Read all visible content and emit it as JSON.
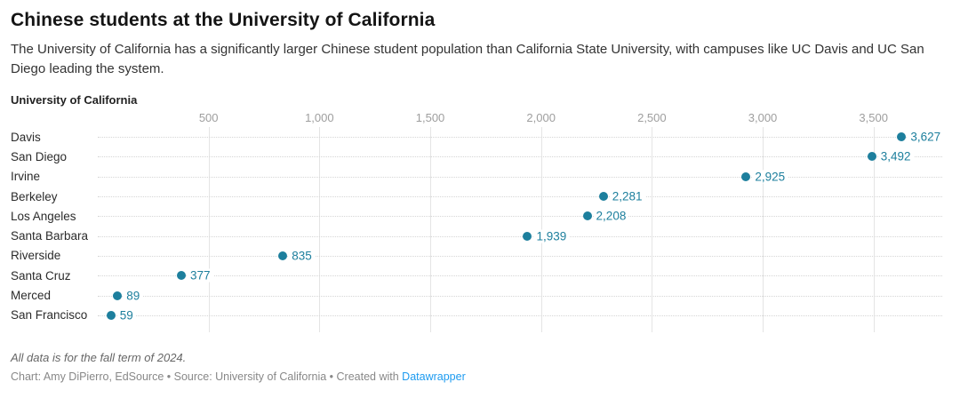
{
  "header": {
    "title": "Chinese students at the University of California",
    "subtitle": "The University of California has a significantly larger Chinese student population than California State University, with campuses like UC Davis and UC San Diego leading the system."
  },
  "chart_data": {
    "type": "scatter",
    "subtype": "horizontal-dot-plot",
    "title": "University of California",
    "categories": [
      "Davis",
      "San Diego",
      "Irvine",
      "Berkeley",
      "Los Angeles",
      "Santa Barbara",
      "Riverside",
      "Santa Cruz",
      "Merced",
      "San Francisco"
    ],
    "values": [
      3627,
      3492,
      2925,
      2281,
      2208,
      1939,
      835,
      377,
      89,
      59
    ],
    "value_labels": [
      "3,627",
      "3,492",
      "2,925",
      "2,281",
      "2,208",
      "1,939",
      "835",
      "377",
      "89",
      "59"
    ],
    "x_ticks": [
      500,
      1000,
      1500,
      2000,
      2500,
      3000,
      3500
    ],
    "x_tick_labels": [
      "500",
      "1,000",
      "1,500",
      "2,000",
      "2,500",
      "3,000",
      "3,500"
    ],
    "xlim": [
      0,
      3810
    ],
    "grid": "vertical-solid-plus-horizontal-dotted-leaders",
    "legend": "none",
    "dot_color": "#1d7f9d"
  },
  "footer": {
    "note": "All data is for the fall term of 2024.",
    "byline_prefix": "Chart: Amy DiPierro, EdSource • Source: University of California • Created with ",
    "link_text": "Datawrapper"
  },
  "colors": {
    "accent_teal": "#1d7f9d",
    "link_blue": "#1d9bf0",
    "tick_gray": "#9e9e9e",
    "gridline_gray": "#e4e4e4"
  }
}
